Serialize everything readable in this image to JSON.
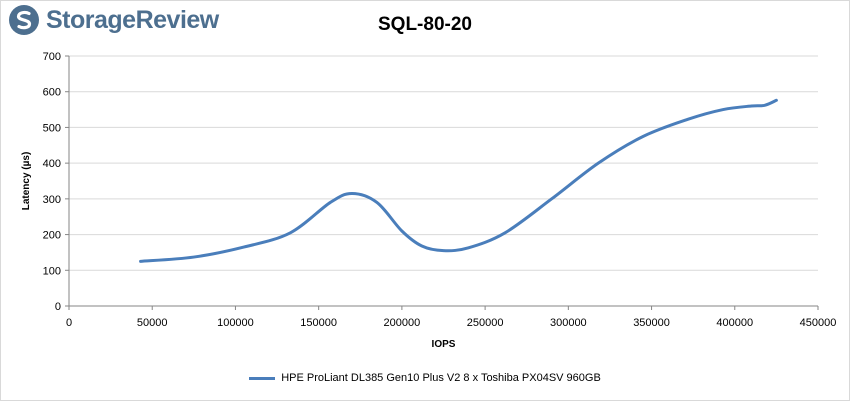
{
  "brand": {
    "logo_text": "StorageReview"
  },
  "colors": {
    "series": "#4a7ebb",
    "grid": "#d9d9d9",
    "axis": "#868686",
    "logo": "#4d6f8f"
  },
  "chart_data": {
    "type": "line",
    "title": "SQL-80-20",
    "xlabel": "IOPS",
    "ylabel": "Latency (µs)",
    "xlim": [
      0,
      450000
    ],
    "ylim": [
      0,
      700
    ],
    "xticks": [
      0,
      50000,
      100000,
      150000,
      200000,
      250000,
      300000,
      350000,
      400000,
      450000
    ],
    "yticks": [
      0,
      100,
      200,
      300,
      400,
      500,
      600,
      700
    ],
    "grid": true,
    "legend_position": "bottom",
    "series": [
      {
        "name": "HPE ProLiant DL385 Gen10 Plus V2 8 x Toshiba PX04SV 960GB",
        "x": [
          43000,
          75000,
          105000,
          133000,
          157000,
          170000,
          185000,
          200000,
          212000,
          225000,
          240000,
          262000,
          290000,
          318000,
          345000,
          372000,
          393000,
          410000,
          418000,
          425000
        ],
        "y": [
          125,
          137,
          165,
          205,
          290,
          315,
          290,
          210,
          168,
          155,
          163,
          205,
          300,
          400,
          475,
          523,
          550,
          560,
          562,
          576
        ]
      }
    ]
  }
}
